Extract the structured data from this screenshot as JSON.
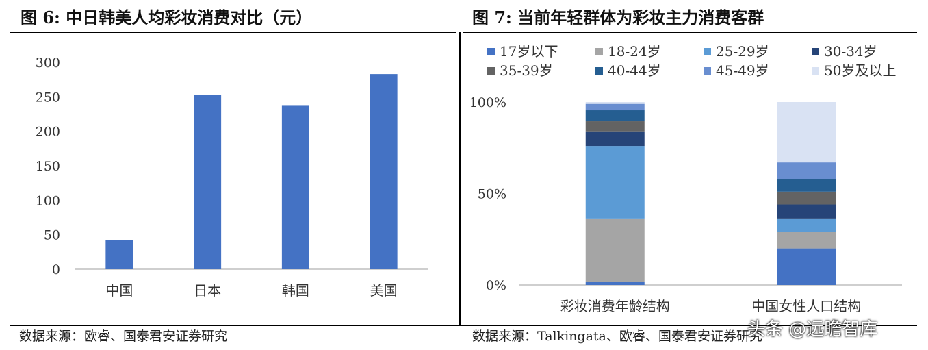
{
  "left_panel": {
    "title": "图 6:  中日韩美人均彩妆消费对比（元）",
    "source": "数据来源：欧睿、国泰君安证券研究"
  },
  "right_panel": {
    "title": "图 7:  当前年轻群体为彩妆主力消费客群",
    "source": "数据来源：Talkingata、欧睿、国泰君安证券研究"
  },
  "watermark": "头条 @远瞻智库",
  "chart_data": [
    {
      "type": "bar",
      "title": "中日韩美人均彩妆消费对比（元）",
      "categories": [
        "中国",
        "日本",
        "韩国",
        "美国"
      ],
      "values": [
        42,
        253,
        237,
        283
      ],
      "ylim": [
        0,
        300
      ],
      "yticks": [
        0,
        50,
        100,
        150,
        200,
        250,
        300
      ],
      "grid": false,
      "color": "#4472C4"
    },
    {
      "type": "bar",
      "stacked": true,
      "percent": true,
      "title": "当前年轻群体为彩妆主力消费客群",
      "categories": [
        "彩妆消费年龄结构",
        "中国女性人口结构"
      ],
      "ylim": [
        0,
        100
      ],
      "yticks": [
        "0%",
        "50%",
        "100%"
      ],
      "legend_position": "top",
      "series": [
        {
          "name": "17岁以下",
          "color": "#4472C4",
          "values": [
            1.5,
            20
          ]
        },
        {
          "name": "18-24岁",
          "color": "#A5A5A5",
          "values": [
            34.5,
            9
          ]
        },
        {
          "name": "25-29岁",
          "color": "#5B9BD5",
          "values": [
            40,
            7
          ]
        },
        {
          "name": "30-34岁",
          "color": "#264478",
          "values": [
            8,
            8
          ]
        },
        {
          "name": "35-39岁",
          "color": "#636363",
          "values": [
            5.5,
            7
          ]
        },
        {
          "name": "40-44岁",
          "color": "#255E91",
          "values": [
            6,
            7
          ]
        },
        {
          "name": "45-49岁",
          "color": "#698ED0",
          "values": [
            3.5,
            9
          ]
        },
        {
          "name": "50岁及以上",
          "color": "#D9E2F3",
          "values": [
            1,
            33
          ]
        }
      ]
    }
  ]
}
